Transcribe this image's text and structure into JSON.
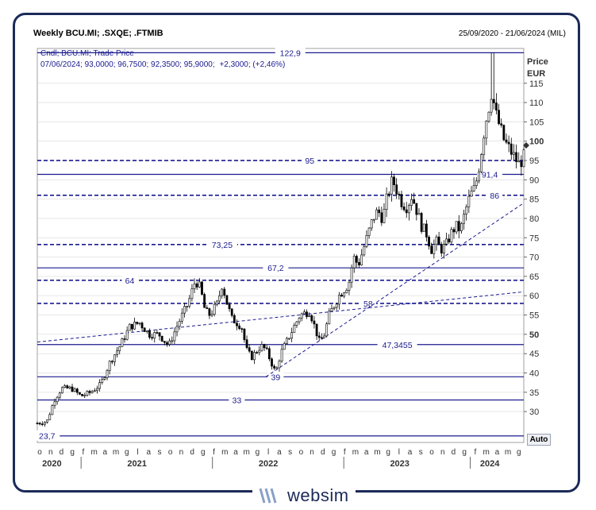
{
  "header": {
    "title": "Weekly BCU.MI; .SXQE; .FTMIB",
    "date_range": "25/09/2020 - 21/06/2024 (MIL)"
  },
  "legend": {
    "line1": "Cndl; BCU.MI; Trade Price",
    "line2_ohlc": "07/06/2024; 93,0000; 96,7500; 92,3500; 95,9000;",
    "line2_change": "+2,3000; (+2,46%)"
  },
  "axis": {
    "y_title": "Price",
    "y_unit": "EUR",
    "auto_label": "Auto"
  },
  "brand": {
    "name": "websim"
  },
  "colors": {
    "navy": "#1b1b8f",
    "frame": "#1b2a58",
    "candle": "#000000",
    "grid": "#d8d8d8"
  },
  "chart_data": {
    "type": "candlestick",
    "title": "Weekly BCU.MI; .SXQE; .FTMIB",
    "ylabel": "Price EUR",
    "ylim": [
      22,
      124
    ],
    "y_ticks": [
      30,
      35,
      40,
      45,
      50,
      55,
      60,
      65,
      70,
      75,
      80,
      85,
      90,
      95,
      100,
      105,
      110,
      115
    ],
    "y_ticks_bold": [
      50,
      100
    ],
    "x_month_labels": [
      "o",
      "n",
      "d",
      "g",
      "f",
      "m",
      "a",
      "m",
      "g",
      "l",
      "a",
      "s",
      "o",
      "n",
      "d",
      "g",
      "f",
      "m",
      "a",
      "m",
      "g",
      "l",
      "a",
      "s",
      "o",
      "n",
      "d",
      "g",
      "f",
      "m",
      "a",
      "m",
      "g",
      "l",
      "a",
      "s",
      "o",
      "n",
      "d",
      "g",
      "f",
      "m",
      "a",
      "m",
      "g"
    ],
    "x_years": [
      "2020",
      "2021",
      "2022",
      "2023",
      "2024"
    ],
    "horizontal_levels": [
      {
        "value": 122.9,
        "label": "122,9",
        "style": "solid"
      },
      {
        "value": 95,
        "label": "95",
        "style": "dashed"
      },
      {
        "value": 91.4,
        "label": "91,4",
        "style": "solid"
      },
      {
        "value": 86,
        "label": "86",
        "style": "dashed"
      },
      {
        "value": 73.25,
        "label": "73,25",
        "style": "dashed"
      },
      {
        "value": 67.2,
        "label": "67,2",
        "style": "solid"
      },
      {
        "value": 64,
        "label": "64",
        "style": "dashed"
      },
      {
        "value": 58,
        "label": "58",
        "style": "dashed"
      },
      {
        "value": 47.3455,
        "label": "47,3455",
        "style": "solid"
      },
      {
        "value": 39,
        "label": "39",
        "style": "solid"
      },
      {
        "value": 33,
        "label": "33",
        "style": "solid"
      },
      {
        "value": 23.7,
        "label": "23,7",
        "style": "solid"
      }
    ],
    "trendlines": [
      {
        "from": [
          0,
          48
        ],
        "to": [
          1,
          61
        ]
      },
      {
        "from": [
          0.47,
          39
        ],
        "to": [
          1,
          84
        ]
      }
    ],
    "price_path": [
      [
        0.0,
        27
      ],
      [
        0.02,
        27.5
      ],
      [
        0.035,
        33
      ],
      [
        0.05,
        36
      ],
      [
        0.07,
        36
      ],
      [
        0.09,
        34
      ],
      [
        0.11,
        35
      ],
      [
        0.13,
        37
      ],
      [
        0.15,
        43
      ],
      [
        0.17,
        47
      ],
      [
        0.19,
        52
      ],
      [
        0.21,
        53
      ],
      [
        0.23,
        50
      ],
      [
        0.25,
        50
      ],
      [
        0.27,
        47
      ],
      [
        0.29,
        53
      ],
      [
        0.31,
        58
      ],
      [
        0.325,
        64
      ],
      [
        0.335,
        62
      ],
      [
        0.345,
        56
      ],
      [
        0.355,
        55
      ],
      [
        0.37,
        58
      ],
      [
        0.38,
        63
      ],
      [
        0.39,
        58
      ],
      [
        0.4,
        54
      ],
      [
        0.42,
        52
      ],
      [
        0.43,
        46
      ],
      [
        0.44,
        44
      ],
      [
        0.46,
        47
      ],
      [
        0.47,
        46
      ],
      [
        0.48,
        43
      ],
      [
        0.49,
        40
      ],
      [
        0.5,
        45
      ],
      [
        0.52,
        50
      ],
      [
        0.54,
        55
      ],
      [
        0.56,
        56
      ],
      [
        0.57,
        52
      ],
      [
        0.58,
        48
      ],
      [
        0.59,
        50
      ],
      [
        0.6,
        55
      ],
      [
        0.62,
        60
      ],
      [
        0.64,
        63
      ],
      [
        0.65,
        70
      ],
      [
        0.66,
        68
      ],
      [
        0.67,
        72
      ],
      [
        0.68,
        76
      ],
      [
        0.69,
        80
      ],
      [
        0.7,
        82
      ],
      [
        0.71,
        80
      ],
      [
        0.72,
        86
      ],
      [
        0.73,
        90
      ],
      [
        0.74,
        87
      ],
      [
        0.75,
        84
      ],
      [
        0.76,
        83
      ],
      [
        0.77,
        86
      ],
      [
        0.78,
        82
      ],
      [
        0.79,
        78
      ],
      [
        0.8,
        76
      ],
      [
        0.81,
        72
      ],
      [
        0.82,
        74
      ],
      [
        0.83,
        72
      ],
      [
        0.84,
        73
      ],
      [
        0.85,
        76
      ],
      [
        0.86,
        78
      ],
      [
        0.87,
        77
      ],
      [
        0.88,
        82
      ],
      [
        0.89,
        86
      ],
      [
        0.9,
        88
      ],
      [
        0.91,
        95
      ],
      [
        0.92,
        104
      ],
      [
        0.93,
        110
      ],
      [
        0.935,
        114
      ],
      [
        0.94,
        108
      ],
      [
        0.95,
        104
      ],
      [
        0.96,
        100
      ],
      [
        0.97,
        98
      ],
      [
        0.98,
        96
      ],
      [
        0.99,
        94
      ],
      [
        1.0,
        95.9
      ]
    ]
  }
}
